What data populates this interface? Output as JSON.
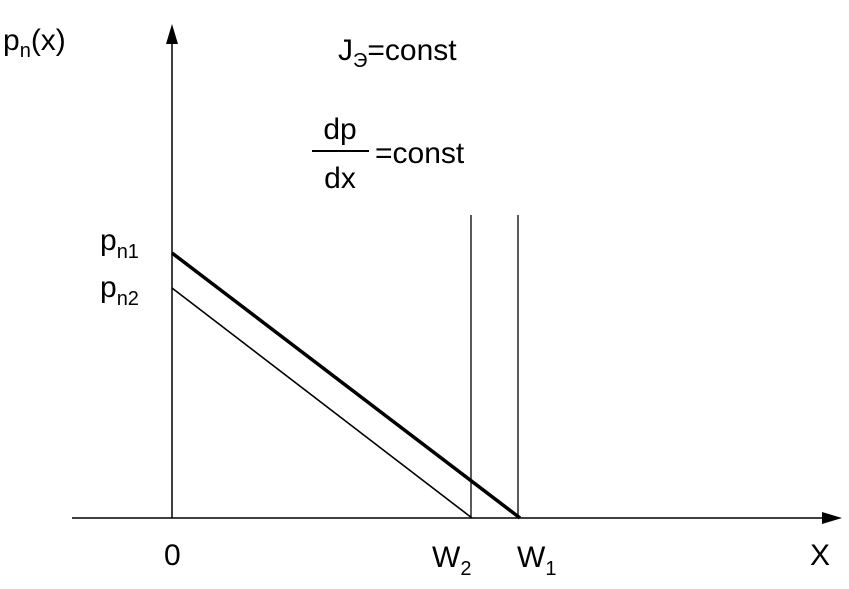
{
  "axes": {
    "y_label": {
      "base": "p",
      "sub": "n",
      "rest": "(x)"
    },
    "x_label": "X",
    "origin_label": "0"
  },
  "annotations": {
    "current": {
      "base": "J",
      "sub": "Э",
      "rest": "=const"
    },
    "gradient": {
      "numerator": "dp",
      "denominator": "dx",
      "rest": "=const"
    }
  },
  "lines": [
    {
      "id": "p1",
      "label": {
        "base": "p",
        "sub": "n1"
      },
      "end_label": {
        "base": "W",
        "sub": "1"
      },
      "emphasis": "thick"
    },
    {
      "id": "p2",
      "label": {
        "base": "p",
        "sub": "n2"
      },
      "end_label": {
        "base": "W",
        "sub": "2"
      },
      "emphasis": "thin"
    }
  ],
  "colors": {
    "ink": "#000000",
    "background": "#ffffff"
  }
}
